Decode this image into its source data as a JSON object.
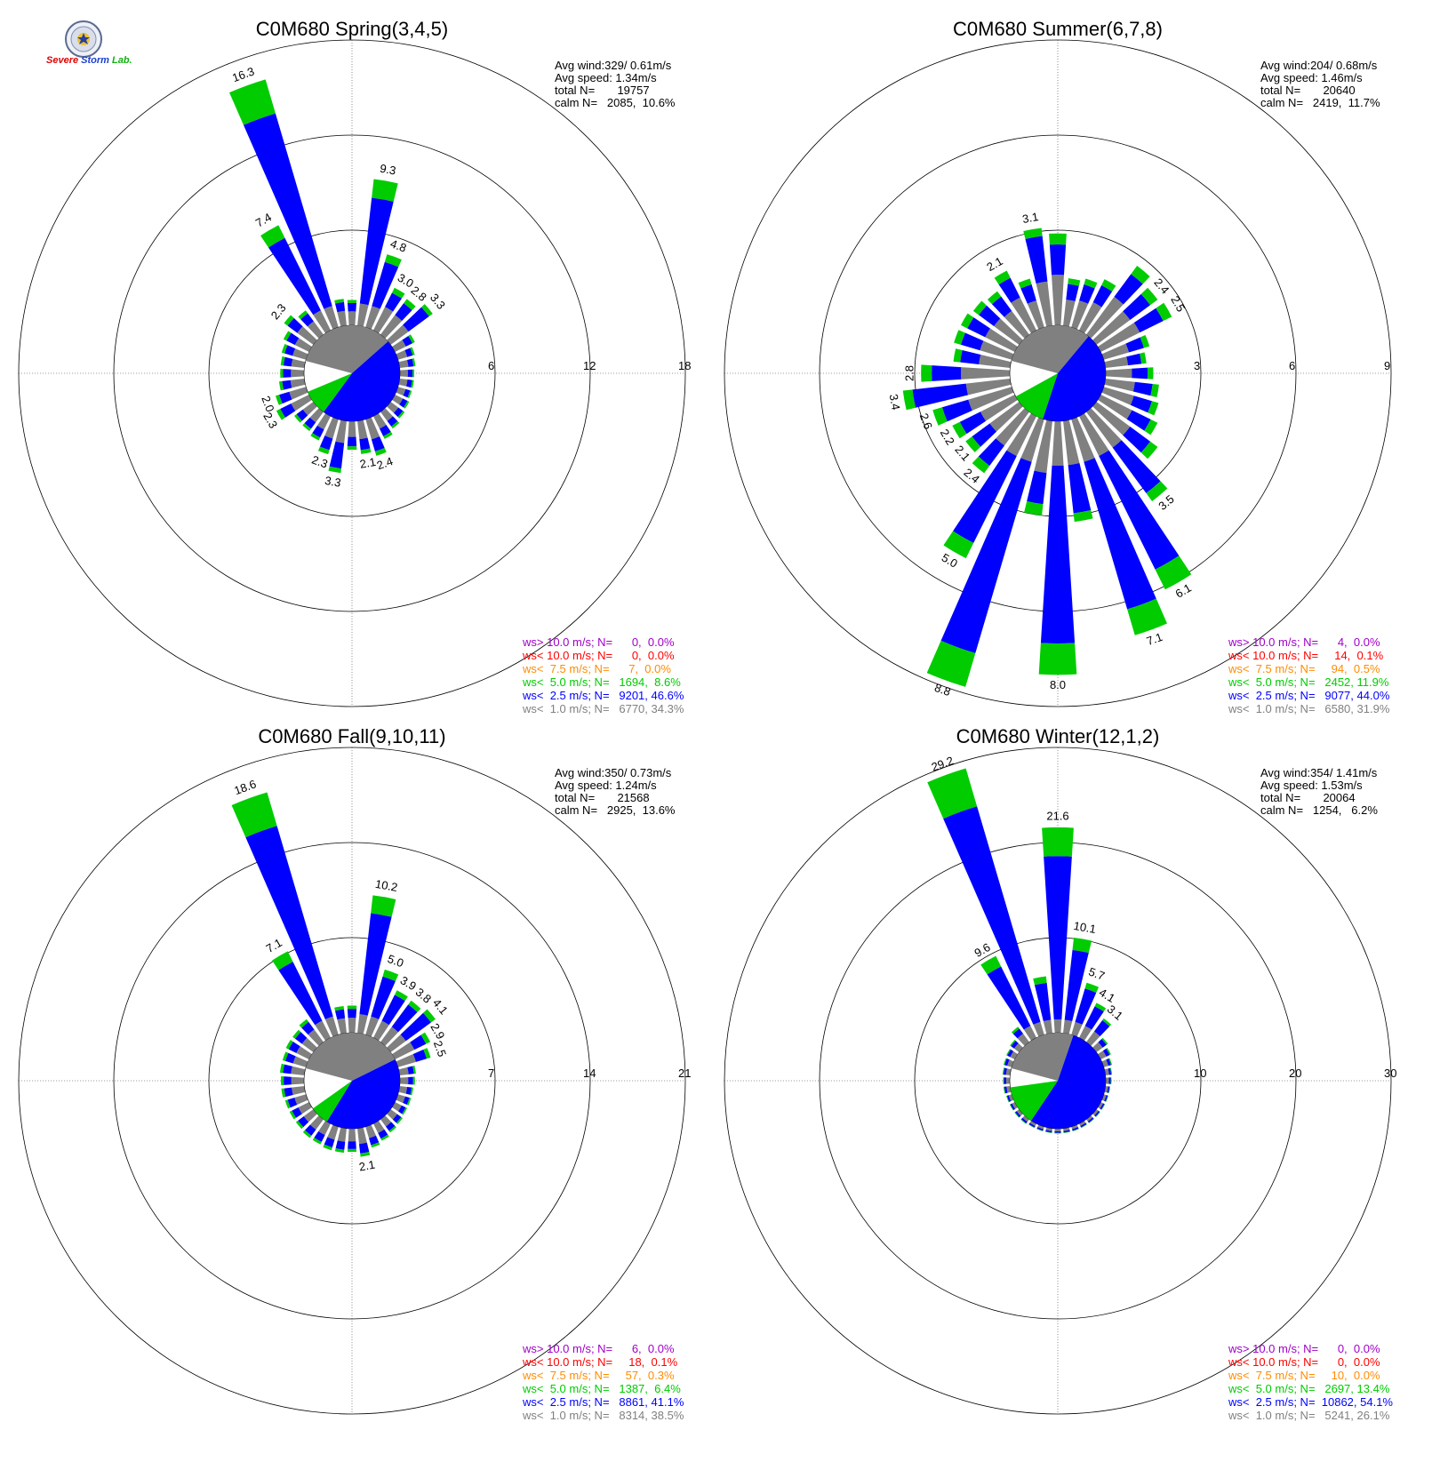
{
  "logo": {
    "name": "Severe Storm Lab.",
    "text_severe": "Severe",
    "text_storm": "Storm",
    "text_lab": "Lab.",
    "color_s": "#e00000",
    "color_storm": "#1a3fd0",
    "color_lab": "#10b010"
  },
  "colors": {
    "gray": "#808080",
    "blue": "#0000ff",
    "green": "#00cc00",
    "orange": "#ff8c00",
    "red": "#ff0000",
    "purple": "#a000c8",
    "grid": "#000000"
  },
  "chart_data": [
    {
      "type": "windrose",
      "title": "C0M680 Spring(3,4,5)",
      "rmax": 18,
      "ring_labels": [
        "6",
        "12",
        "18"
      ],
      "stats": [
        "Avg wind:329/ 0.61m/s",
        "Avg speed: 1.34m/s",
        "total N=       19757",
        "calm N=   2085,  10.6%"
      ],
      "legend": [
        {
          "text": "ws> 10.0 m/s; N=      0,  0.0%",
          "color": "#a000c8"
        },
        {
          "text": "ws< 10.0 m/s; N=      0,  0.0%",
          "color": "#ff0000"
        },
        {
          "text": "ws<  7.5 m/s; N=      7,  0.0%",
          "color": "#ff8c00"
        },
        {
          "text": "ws<  5.0 m/s; N=   1694,  8.6%",
          "color": "#00cc00"
        },
        {
          "text": "ws<  2.5 m/s; N=   9201, 46.6%",
          "color": "#0000ff"
        },
        {
          "text": "ws<  1.0 m/s; N=   6770, 34.3%",
          "color": "#808080"
        }
      ],
      "calm_pie": {
        "gray": 34.3,
        "blue": 46.6,
        "green": 8.6
      },
      "directions": [
        {
          "dir": 0,
          "total": 1.6
        },
        {
          "dir": 10,
          "total": 9.3,
          "label": "9.3"
        },
        {
          "dir": 20,
          "total": 4.8,
          "label": "4.8"
        },
        {
          "dir": 30,
          "total": 3.0,
          "label": "3.0"
        },
        {
          "dir": 40,
          "total": 2.8,
          "label": "2.8"
        },
        {
          "dir": 50,
          "total": 3.3,
          "label": "3.3"
        },
        {
          "dir": 60,
          "total": 1.4
        },
        {
          "dir": 70,
          "total": 1.1
        },
        {
          "dir": 80,
          "total": 1.0
        },
        {
          "dir": 90,
          "total": 0.9
        },
        {
          "dir": 100,
          "total": 0.9
        },
        {
          "dir": 110,
          "total": 0.9
        },
        {
          "dir": 120,
          "total": 1.0
        },
        {
          "dir": 130,
          "total": 1.1
        },
        {
          "dir": 140,
          "total": 1.3
        },
        {
          "dir": 150,
          "total": 1.6
        },
        {
          "dir": 160,
          "total": 2.4,
          "label": "2.4"
        },
        {
          "dir": 170,
          "total": 2.1,
          "label": "2.1"
        },
        {
          "dir": 180,
          "total": 1.8
        },
        {
          "dir": 190,
          "total": 3.3,
          "label": "3.3"
        },
        {
          "dir": 200,
          "total": 2.3,
          "label": "2.3"
        },
        {
          "dir": 210,
          "total": 1.7
        },
        {
          "dir": 220,
          "total": 1.5
        },
        {
          "dir": 230,
          "total": 1.5
        },
        {
          "dir": 240,
          "total": 2.3,
          "label": "2.3"
        },
        {
          "dir": 250,
          "total": 2.0,
          "label": "2.0"
        },
        {
          "dir": 260,
          "total": 1.6
        },
        {
          "dir": 270,
          "total": 1.5
        },
        {
          "dir": 280,
          "total": 1.5
        },
        {
          "dir": 290,
          "total": 1.6
        },
        {
          "dir": 300,
          "total": 1.8
        },
        {
          "dir": 310,
          "total": 2.3,
          "label": "2.3"
        },
        {
          "dir": 320,
          "total": 1.9
        },
        {
          "dir": 330,
          "total": 7.4,
          "label": "7.4"
        },
        {
          "dir": 340,
          "total": 16.3,
          "label": "16.3"
        },
        {
          "dir": 350,
          "total": 1.7
        }
      ]
    },
    {
      "type": "windrose",
      "title": "C0M680 Summer(6,7,8)",
      "rmax": 9,
      "ring_labels": [
        "3",
        "6",
        "9"
      ],
      "stats": [
        "Avg wind:204/ 0.68m/s",
        "Avg speed: 1.46m/s",
        "total N=       20640",
        "calm N=   2419,  11.7%"
      ],
      "legend": [
        {
          "text": "ws> 10.0 m/s; N=      4,  0.0%",
          "color": "#a000c8"
        },
        {
          "text": "ws< 10.0 m/s; N=     14,  0.1%",
          "color": "#ff0000"
        },
        {
          "text": "ws<  7.5 m/s; N=     94,  0.5%",
          "color": "#ff8c00"
        },
        {
          "text": "ws<  5.0 m/s; N=   2452, 11.9%",
          "color": "#00cc00"
        },
        {
          "text": "ws<  2.5 m/s; N=   9077, 44.0%",
          "color": "#0000ff"
        },
        {
          "text": "ws<  1.0 m/s; N=   6580, 31.9%",
          "color": "#808080"
        }
      ],
      "calm_pie": {
        "gray": 31.9,
        "blue": 44.0,
        "green": 11.9
      },
      "directions": [
        {
          "dir": 0,
          "total": 2.9
        },
        {
          "dir": 10,
          "total": 1.5
        },
        {
          "dir": 20,
          "total": 1.6
        },
        {
          "dir": 30,
          "total": 1.8
        },
        {
          "dir": 40,
          "total": 2.7
        },
        {
          "dir": 50,
          "total": 2.4,
          "label": "2.4"
        },
        {
          "dir": 60,
          "total": 2.5,
          "label": "2.5"
        },
        {
          "dir": 70,
          "total": 1.5
        },
        {
          "dir": 80,
          "total": 1.3
        },
        {
          "dir": 90,
          "total": 1.5
        },
        {
          "dir": 100,
          "total": 1.7
        },
        {
          "dir": 110,
          "total": 1.8
        },
        {
          "dir": 120,
          "total": 2.0
        },
        {
          "dir": 130,
          "total": 2.4
        },
        {
          "dir": 140,
          "total": 3.5,
          "label": "3.5"
        },
        {
          "dir": 150,
          "total": 6.1,
          "label": "6.1"
        },
        {
          "dir": 160,
          "total": 7.1,
          "label": "7.1"
        },
        {
          "dir": 170,
          "total": 3.2
        },
        {
          "dir": 180,
          "total": 8.0,
          "label": "8.0"
        },
        {
          "dir": 190,
          "total": 3.0
        },
        {
          "dir": 200,
          "total": 8.8,
          "label": "8.8"
        },
        {
          "dir": 210,
          "total": 5.0,
          "label": "5.0"
        },
        {
          "dir": 220,
          "total": 2.4,
          "label": "2.4"
        },
        {
          "dir": 230,
          "total": 2.1,
          "label": "2.1"
        },
        {
          "dir": 240,
          "total": 2.2,
          "label": "2.2"
        },
        {
          "dir": 250,
          "total": 2.6,
          "label": "2.6"
        },
        {
          "dir": 260,
          "total": 3.4,
          "label": "3.4"
        },
        {
          "dir": 270,
          "total": 2.8,
          "label": "2.8"
        },
        {
          "dir": 280,
          "total": 1.8
        },
        {
          "dir": 290,
          "total": 1.9
        },
        {
          "dir": 300,
          "total": 1.9
        },
        {
          "dir": 310,
          "total": 1.8
        },
        {
          "dir": 320,
          "total": 1.7
        },
        {
          "dir": 330,
          "total": 2.1,
          "label": "2.1"
        },
        {
          "dir": 340,
          "total": 1.6
        },
        {
          "dir": 350,
          "total": 3.1,
          "label": "3.1"
        }
      ]
    },
    {
      "type": "windrose",
      "title": "C0M680 Fall(9,10,11)",
      "rmax": 21,
      "ring_labels": [
        "7",
        "14",
        "21"
      ],
      "stats": [
        "Avg wind:350/ 0.73m/s",
        "Avg speed: 1.24m/s",
        "total N=       21568",
        "calm N=   2925,  13.6%"
      ],
      "legend": [
        {
          "text": "ws> 10.0 m/s; N=      6,  0.0%",
          "color": "#a000c8"
        },
        {
          "text": "ws< 10.0 m/s; N=     18,  0.1%",
          "color": "#ff0000"
        },
        {
          "text": "ws<  7.5 m/s; N=     57,  0.3%",
          "color": "#ff8c00"
        },
        {
          "text": "ws<  5.0 m/s; N=   1387,  6.4%",
          "color": "#00cc00"
        },
        {
          "text": "ws<  2.5 m/s; N=   8861, 41.1%",
          "color": "#0000ff"
        },
        {
          "text": "ws<  1.0 m/s; N=   8314, 38.5%",
          "color": "#808080"
        }
      ],
      "calm_pie": {
        "gray": 38.5,
        "blue": 41.1,
        "green": 6.4
      },
      "directions": [
        {
          "dir": 0,
          "total": 2.0
        },
        {
          "dir": 10,
          "total": 10.2,
          "label": "10.2"
        },
        {
          "dir": 20,
          "total": 5.0,
          "label": "5.0"
        },
        {
          "dir": 30,
          "total": 3.9,
          "label": "3.9"
        },
        {
          "dir": 40,
          "total": 3.8,
          "label": "3.8"
        },
        {
          "dir": 50,
          "total": 4.1,
          "label": "4.1"
        },
        {
          "dir": 60,
          "total": 2.9,
          "label": "2.9"
        },
        {
          "dir": 70,
          "total": 2.5,
          "label": "2.5"
        },
        {
          "dir": 80,
          "total": 1.2
        },
        {
          "dir": 90,
          "total": 1.1
        },
        {
          "dir": 100,
          "total": 1.0
        },
        {
          "dir": 110,
          "total": 1.0
        },
        {
          "dir": 120,
          "total": 1.0
        },
        {
          "dir": 130,
          "total": 1.1
        },
        {
          "dir": 140,
          "total": 1.2
        },
        {
          "dir": 150,
          "total": 1.4
        },
        {
          "dir": 160,
          "total": 1.6
        },
        {
          "dir": 170,
          "total": 2.1,
          "label": "2.1"
        },
        {
          "dir": 180,
          "total": 1.7
        },
        {
          "dir": 190,
          "total": 1.8
        },
        {
          "dir": 200,
          "total": 1.8
        },
        {
          "dir": 210,
          "total": 1.7
        },
        {
          "dir": 220,
          "total": 1.7
        },
        {
          "dir": 230,
          "total": 1.6
        },
        {
          "dir": 240,
          "total": 1.6
        },
        {
          "dir": 250,
          "total": 1.6
        },
        {
          "dir": 260,
          "total": 1.7
        },
        {
          "dir": 270,
          "total": 1.7
        },
        {
          "dir": 280,
          "total": 1.8
        },
        {
          "dir": 290,
          "total": 1.8
        },
        {
          "dir": 300,
          "total": 1.9
        },
        {
          "dir": 310,
          "total": 1.9
        },
        {
          "dir": 320,
          "total": 2.1
        },
        {
          "dir": 330,
          "total": 7.1,
          "label": "7.1"
        },
        {
          "dir": 340,
          "total": 18.6,
          "label": "18.6"
        },
        {
          "dir": 350,
          "total": 2.0
        }
      ]
    },
    {
      "type": "windrose",
      "title": "C0M680 Winter(12,1,2)",
      "rmax": 30,
      "ring_labels": [
        "10",
        "20",
        "30"
      ],
      "stats": [
        "Avg wind:354/ 1.41m/s",
        "Avg speed: 1.53m/s",
        "total N=       20064",
        "calm N=   1254,   6.2%"
      ],
      "legend": [
        {
          "text": "ws> 10.0 m/s; N=      0,  0.0%",
          "color": "#a000c8"
        },
        {
          "text": "ws< 10.0 m/s; N=      0,  0.0%",
          "color": "#ff0000"
        },
        {
          "text": "ws<  7.5 m/s; N=     10,  0.0%",
          "color": "#ff8c00"
        },
        {
          "text": "ws<  5.0 m/s; N=   2697, 13.4%",
          "color": "#00cc00"
        },
        {
          "text": "ws<  2.5 m/s; N=  10862, 54.1%",
          "color": "#0000ff"
        },
        {
          "text": "ws<  1.0 m/s; N=   5241, 26.1%",
          "color": "#808080"
        }
      ],
      "calm_pie": {
        "gray": 26.1,
        "blue": 54.1,
        "green": 13.4
      },
      "directions": [
        {
          "dir": 0,
          "total": 21.6,
          "label": "21.6"
        },
        {
          "dir": 10,
          "total": 10.1,
          "label": "10.1"
        },
        {
          "dir": 20,
          "total": 5.7,
          "label": "5.7"
        },
        {
          "dir": 30,
          "total": 4.1,
          "label": "4.1"
        },
        {
          "dir": 40,
          "total": 3.1,
          "label": "3.1"
        },
        {
          "dir": 50,
          "total": 1.5
        },
        {
          "dir": 60,
          "total": 1.2
        },
        {
          "dir": 70,
          "total": 0.9
        },
        {
          "dir": 80,
          "total": 0.7
        },
        {
          "dir": 90,
          "total": 0.6
        },
        {
          "dir": 100,
          "total": 0.5
        },
        {
          "dir": 110,
          "total": 0.5
        },
        {
          "dir": 120,
          "total": 0.5
        },
        {
          "dir": 130,
          "total": 0.5
        },
        {
          "dir": 140,
          "total": 0.5
        },
        {
          "dir": 150,
          "total": 0.5
        },
        {
          "dir": 160,
          "total": 0.5
        },
        {
          "dir": 170,
          "total": 0.5
        },
        {
          "dir": 180,
          "total": 0.5
        },
        {
          "dir": 190,
          "total": 0.5
        },
        {
          "dir": 200,
          "total": 0.5
        },
        {
          "dir": 210,
          "total": 0.5
        },
        {
          "dir": 220,
          "total": 0.6
        },
        {
          "dir": 230,
          "total": 0.6
        },
        {
          "dir": 240,
          "total": 0.6
        },
        {
          "dir": 250,
          "total": 0.6
        },
        {
          "dir": 260,
          "total": 0.7
        },
        {
          "dir": 270,
          "total": 0.7
        },
        {
          "dir": 280,
          "total": 0.8
        },
        {
          "dir": 290,
          "total": 0.9
        },
        {
          "dir": 300,
          "total": 1.0
        },
        {
          "dir": 310,
          "total": 1.2
        },
        {
          "dir": 320,
          "total": 2.0
        },
        {
          "dir": 330,
          "total": 9.6,
          "label": "9.6"
        },
        {
          "dir": 340,
          "total": 29.2,
          "label": "29.2"
        },
        {
          "dir": 350,
          "total": 6.0
        }
      ]
    }
  ]
}
